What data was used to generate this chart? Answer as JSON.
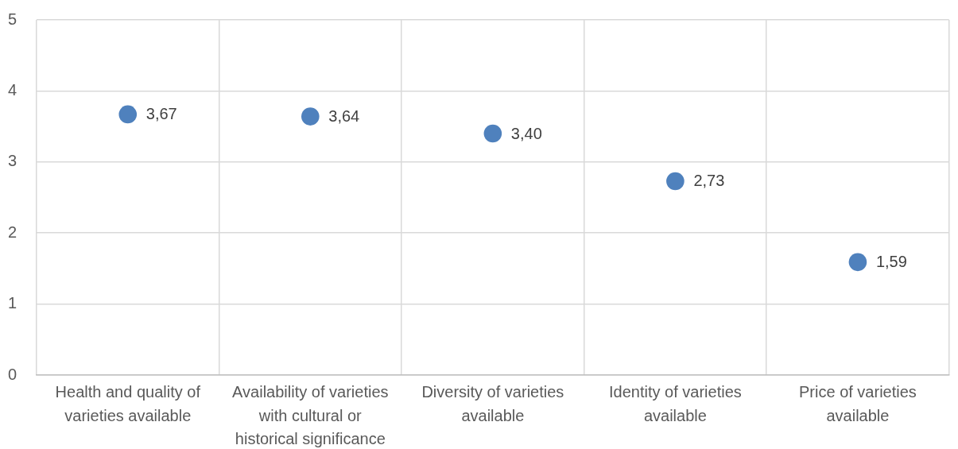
{
  "chart_data": {
    "type": "scatter",
    "categories": [
      "Health and quality of varieties available",
      "Availability of varieties with cultural or historical significance",
      "Diversity of varieties available",
      "Identity of varieties available",
      "Price of varieties available"
    ],
    "values": [
      3.67,
      3.64,
      3.4,
      2.73,
      1.59
    ],
    "value_labels": [
      "3,67",
      "3,64",
      "3,40",
      "2,73",
      "1,59"
    ],
    "color": "#4f81bd",
    "marker": "circle",
    "ylim": [
      0,
      5
    ],
    "yticks": [
      0,
      1,
      2,
      3,
      4,
      5
    ],
    "grid": true
  }
}
